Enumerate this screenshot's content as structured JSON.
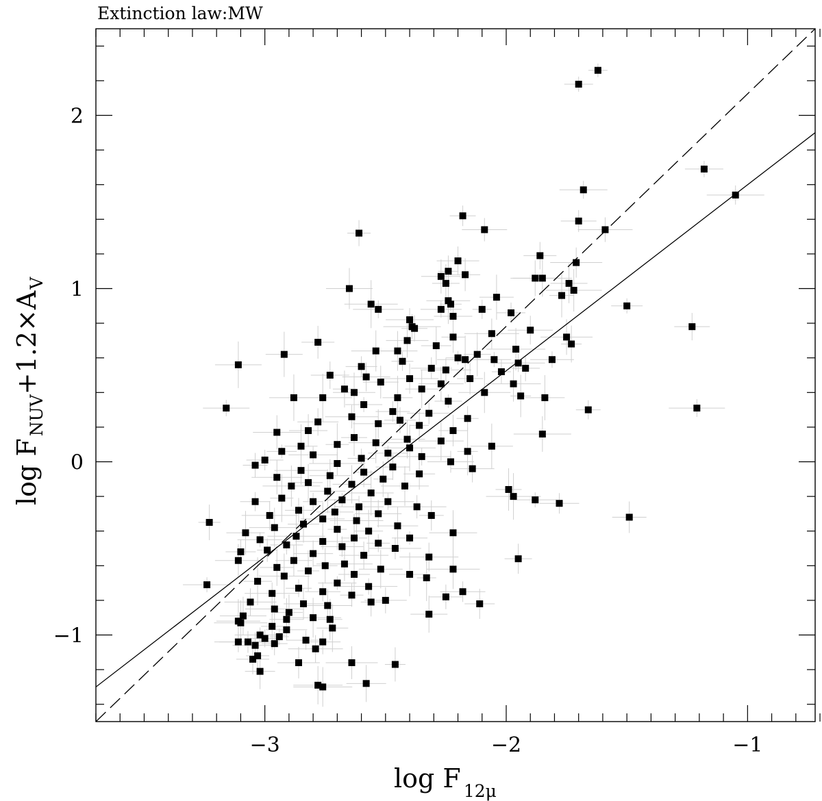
{
  "chart_data": {
    "type": "scatter",
    "title": "Extinction law:MW",
    "xlabel": {
      "main": "log F",
      "sub": "12μ"
    },
    "ylabel": {
      "main": "log F",
      "sub": "NUV",
      "rest": "+1.2×A",
      "sub2": "V"
    },
    "xlim": [
      -3.7,
      -0.72
    ],
    "ylim": [
      -1.5,
      2.5
    ],
    "xticks": [
      -3,
      -2,
      -1
    ],
    "xtick_labels": [
      "−3",
      "−2",
      "−1"
    ],
    "yticks": [
      -1,
      0,
      1,
      2
    ],
    "ytick_labels": [
      "−1",
      "0",
      "1",
      "2"
    ],
    "grid": false,
    "lines": [
      {
        "style": "solid",
        "x": [
          -3.7,
          -0.72
        ],
        "y": [
          -1.3,
          1.9
        ]
      },
      {
        "style": "dashed",
        "x": [
          -3.7,
          -0.72
        ],
        "y": [
          -1.5,
          2.5
        ]
      }
    ],
    "points": [
      [
        -1.62,
        2.26
      ],
      [
        -1.7,
        2.18
      ],
      [
        -1.18,
        1.69
      ],
      [
        -1.68,
        1.57
      ],
      [
        -1.05,
        1.54
      ],
      [
        -2.18,
        1.42
      ],
      [
        -1.7,
        1.39
      ],
      [
        -2.09,
        1.34
      ],
      [
        -1.59,
        1.34
      ],
      [
        -2.61,
        1.32
      ],
      [
        -1.86,
        1.19
      ],
      [
        -2.2,
        1.16
      ],
      [
        -1.71,
        1.15
      ],
      [
        -2.24,
        1.1
      ],
      [
        -2.17,
        1.08
      ],
      [
        -2.27,
        1.07
      ],
      [
        -1.88,
        1.06
      ],
      [
        -1.85,
        1.06
      ],
      [
        -2.25,
        1.03
      ],
      [
        -1.74,
        1.03
      ],
      [
        -2.65,
        1.0
      ],
      [
        -1.72,
        0.99
      ],
      [
        -1.77,
        0.96
      ],
      [
        -2.04,
        0.95
      ],
      [
        -2.24,
        0.93
      ],
      [
        -2.56,
        0.91
      ],
      [
        -2.23,
        0.91
      ],
      [
        -1.5,
        0.9
      ],
      [
        -2.27,
        0.88
      ],
      [
        -2.53,
        0.88
      ],
      [
        -2.1,
        0.88
      ],
      [
        -1.98,
        0.86
      ],
      [
        -2.22,
        0.84
      ],
      [
        -2.4,
        0.82
      ],
      [
        -2.39,
        0.78
      ],
      [
        -2.38,
        0.77
      ],
      [
        -1.23,
        0.78
      ],
      [
        -1.9,
        0.76
      ],
      [
        -2.06,
        0.74
      ],
      [
        -2.22,
        0.72
      ],
      [
        -2.78,
        0.69
      ],
      [
        -2.41,
        0.7
      ],
      [
        -1.75,
        0.72
      ],
      [
        -1.73,
        0.68
      ],
      [
        -2.29,
        0.67
      ],
      [
        -2.45,
        0.64
      ],
      [
        -2.54,
        0.64
      ],
      [
        -1.96,
        0.65
      ],
      [
        -2.12,
        0.62
      ],
      [
        -2.92,
        0.62
      ],
      [
        -3.11,
        0.56
      ],
      [
        -2.17,
        0.59
      ],
      [
        -2.2,
        0.6
      ],
      [
        -2.05,
        0.59
      ],
      [
        -1.81,
        0.59
      ],
      [
        -1.95,
        0.57
      ],
      [
        -2.43,
        0.58
      ],
      [
        -2.6,
        0.55
      ],
      [
        -2.31,
        0.54
      ],
      [
        -2.25,
        0.53
      ],
      [
        -2.02,
        0.52
      ],
      [
        -1.92,
        0.54
      ],
      [
        -2.73,
        0.5
      ],
      [
        -2.58,
        0.49
      ],
      [
        -2.4,
        0.48
      ],
      [
        -2.15,
        0.48
      ],
      [
        -2.52,
        0.46
      ],
      [
        -2.27,
        0.45
      ],
      [
        -1.97,
        0.45
      ],
      [
        -2.67,
        0.42
      ],
      [
        -2.35,
        0.42
      ],
      [
        -2.63,
        0.4
      ],
      [
        -2.09,
        0.4
      ],
      [
        -1.94,
        0.38
      ],
      [
        -2.45,
        0.37
      ],
      [
        -1.84,
        0.37
      ],
      [
        -2.88,
        0.37
      ],
      [
        -2.76,
        0.37
      ],
      [
        -2.24,
        0.35
      ],
      [
        -2.59,
        0.33
      ],
      [
        -3.16,
        0.31
      ],
      [
        -1.21,
        0.31
      ],
      [
        -1.66,
        0.3
      ],
      [
        -2.47,
        0.29
      ],
      [
        -2.32,
        0.28
      ],
      [
        -2.64,
        0.26
      ],
      [
        -2.16,
        0.25
      ],
      [
        -2.44,
        0.24
      ],
      [
        -2.78,
        0.23
      ],
      [
        -2.53,
        0.22
      ],
      [
        -2.36,
        0.21
      ],
      [
        -2.22,
        0.18
      ],
      [
        -2.82,
        0.18
      ],
      [
        -2.95,
        0.17
      ],
      [
        -1.85,
        0.16
      ],
      [
        -2.63,
        0.14
      ],
      [
        -2.41,
        0.13
      ],
      [
        -2.27,
        0.12
      ],
      [
        -2.54,
        0.11
      ],
      [
        -2.7,
        0.1
      ],
      [
        -2.85,
        0.09
      ],
      [
        -2.06,
        0.09
      ],
      [
        -2.4,
        0.08
      ],
      [
        -2.16,
        0.06
      ],
      [
        -2.93,
        0.06
      ],
      [
        -2.49,
        0.05
      ],
      [
        -2.8,
        0.04
      ],
      [
        -2.35,
        0.03
      ],
      [
        -2.6,
        0.02
      ],
      [
        -3.0,
        0.01
      ],
      [
        -2.23,
        0.0
      ],
      [
        -2.7,
        -0.01
      ],
      [
        -3.04,
        -0.02
      ],
      [
        -2.47,
        -0.03
      ],
      [
        -2.14,
        -0.04
      ],
      [
        -2.85,
        -0.05
      ],
      [
        -2.59,
        -0.06
      ],
      [
        -2.36,
        -0.07
      ],
      [
        -2.73,
        -0.08
      ],
      [
        -2.95,
        -0.09
      ],
      [
        -2.51,
        -0.1
      ],
      [
        -2.82,
        -0.12
      ],
      [
        -2.64,
        -0.13
      ],
      [
        -2.42,
        -0.14
      ],
      [
        -2.89,
        -0.14
      ],
      [
        -1.99,
        -0.16
      ],
      [
        -2.74,
        -0.17
      ],
      [
        -2.56,
        -0.18
      ],
      [
        -1.97,
        -0.2
      ],
      [
        -2.93,
        -0.21
      ],
      [
        -2.68,
        -0.22
      ],
      [
        -1.88,
        -0.22
      ],
      [
        -2.49,
        -0.23
      ],
      [
        -2.8,
        -0.23
      ],
      [
        -3.04,
        -0.23
      ],
      [
        -1.78,
        -0.24
      ],
      [
        -2.61,
        -0.26
      ],
      [
        -2.37,
        -0.26
      ],
      [
        -2.86,
        -0.28
      ],
      [
        -2.71,
        -0.29
      ],
      [
        -2.53,
        -0.3
      ],
      [
        -2.98,
        -0.31
      ],
      [
        -2.31,
        -0.31
      ],
      [
        -1.49,
        -0.32
      ],
      [
        -2.76,
        -0.33
      ],
      [
        -2.62,
        -0.34
      ],
      [
        -3.23,
        -0.35
      ],
      [
        -2.84,
        -0.36
      ],
      [
        -2.45,
        -0.37
      ],
      [
        -2.96,
        -0.38
      ],
      [
        -2.7,
        -0.39
      ],
      [
        -2.57,
        -0.4
      ],
      [
        -3.08,
        -0.41
      ],
      [
        -2.22,
        -0.41
      ],
      [
        -2.87,
        -0.43
      ],
      [
        -2.63,
        -0.44
      ],
      [
        -2.4,
        -0.44
      ],
      [
        -3.02,
        -0.45
      ],
      [
        -2.76,
        -0.46
      ],
      [
        -2.53,
        -0.47
      ],
      [
        -2.91,
        -0.48
      ],
      [
        -2.68,
        -0.49
      ],
      [
        -2.46,
        -0.5
      ],
      [
        -2.99,
        -0.51
      ],
      [
        -3.1,
        -0.52
      ],
      [
        -2.8,
        -0.53
      ],
      [
        -2.59,
        -0.54
      ],
      [
        -2.32,
        -0.55
      ],
      [
        -1.95,
        -0.56
      ],
      [
        -2.88,
        -0.57
      ],
      [
        -3.11,
        -0.57
      ],
      [
        -2.67,
        -0.59
      ],
      [
        -2.75,
        -0.6
      ],
      [
        -2.95,
        -0.61
      ],
      [
        -2.52,
        -0.62
      ],
      [
        -2.22,
        -0.62
      ],
      [
        -2.82,
        -0.63
      ],
      [
        -2.63,
        -0.65
      ],
      [
        -2.4,
        -0.65
      ],
      [
        -2.92,
        -0.66
      ],
      [
        -2.33,
        -0.67
      ],
      [
        -3.03,
        -0.69
      ],
      [
        -2.7,
        -0.7
      ],
      [
        -3.24,
        -0.71
      ],
      [
        -2.57,
        -0.72
      ],
      [
        -2.86,
        -0.73
      ],
      [
        -2.76,
        -0.75
      ],
      [
        -2.18,
        -0.75
      ],
      [
        -2.97,
        -0.76
      ],
      [
        -2.64,
        -0.77
      ],
      [
        -2.25,
        -0.78
      ],
      [
        -2.5,
        -0.8
      ],
      [
        -3.06,
        -0.81
      ],
      [
        -2.56,
        -0.81
      ],
      [
        -2.11,
        -0.82
      ],
      [
        -2.84,
        -0.82
      ],
      [
        -2.74,
        -0.83
      ],
      [
        -2.96,
        -0.85
      ],
      [
        -2.9,
        -0.87
      ],
      [
        -2.32,
        -0.88
      ],
      [
        -3.09,
        -0.89
      ],
      [
        -2.8,
        -0.9
      ],
      [
        -2.73,
        -0.91
      ],
      [
        -2.91,
        -0.91
      ],
      [
        -3.11,
        -0.92
      ],
      [
        -3.1,
        -0.93
      ],
      [
        -2.97,
        -0.95
      ],
      [
        -2.72,
        -0.96
      ],
      [
        -2.91,
        -0.97
      ],
      [
        -3.02,
        -1.0
      ],
      [
        -2.94,
        -1.01
      ],
      [
        -3.0,
        -1.02
      ],
      [
        -2.83,
        -1.03
      ],
      [
        -3.11,
        -1.04
      ],
      [
        -3.07,
        -1.04
      ],
      [
        -2.96,
        -1.05
      ],
      [
        -2.76,
        -1.04
      ],
      [
        -3.04,
        -1.06
      ],
      [
        -2.79,
        -1.08
      ],
      [
        -3.03,
        -1.12
      ],
      [
        -3.05,
        -1.14
      ],
      [
        -2.86,
        -1.16
      ],
      [
        -2.64,
        -1.16
      ],
      [
        -2.46,
        -1.17
      ],
      [
        -3.02,
        -1.21
      ],
      [
        -2.58,
        -1.28
      ],
      [
        -2.78,
        -1.29
      ],
      [
        -2.76,
        -1.3
      ]
    ]
  }
}
